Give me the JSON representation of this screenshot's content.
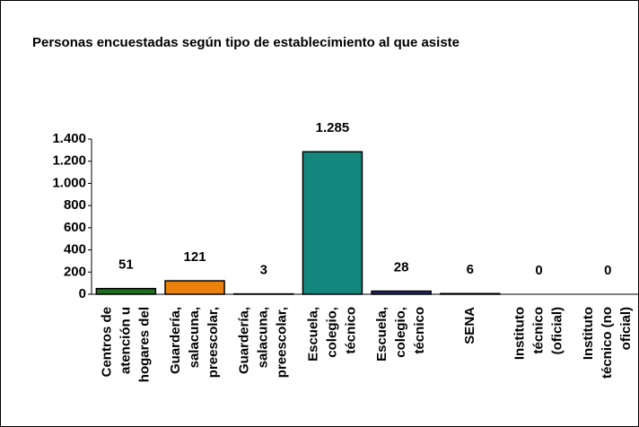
{
  "chart_data": {
    "type": "bar",
    "title": "Personas encuestadas según tipo de establecimiento al que asiste",
    "categories": [
      [
        "Centros de",
        "atención u",
        "hogares del"
      ],
      [
        "Guardería,",
        "salacuna,",
        "preescolar,"
      ],
      [
        "Guardería,",
        "salacuna,",
        "preescolar,"
      ],
      [
        "Escuela,",
        "colegio,",
        "técnico"
      ],
      [
        "Escuela,",
        "colegio,",
        "técnico"
      ],
      [
        "SENA"
      ],
      [
        "Instituto",
        "técnico",
        "(oficial)"
      ],
      [
        "Instituto",
        "técnico (no",
        "oficial)"
      ]
    ],
    "values": [
      51,
      121,
      3,
      1285,
      28,
      6,
      0,
      0
    ],
    "value_labels": [
      "51",
      "121",
      "3",
      "1.285",
      "28",
      "6",
      "0",
      "0"
    ],
    "colors": [
      "#1f6e1f",
      "#e8820c",
      "#7a7a7a",
      "#13877d",
      "#2b2b6e",
      "#1b5e58",
      "#888888",
      "#888888"
    ],
    "ylim": [
      0,
      1400
    ],
    "yticks": [
      0,
      200,
      400,
      600,
      800,
      {
        "value": 1000,
        "label": "1.000"
      },
      {
        "value": 1200,
        "label": "1.200"
      },
      {
        "value": 1400,
        "label": "1.400"
      }
    ],
    "grid": false
  }
}
